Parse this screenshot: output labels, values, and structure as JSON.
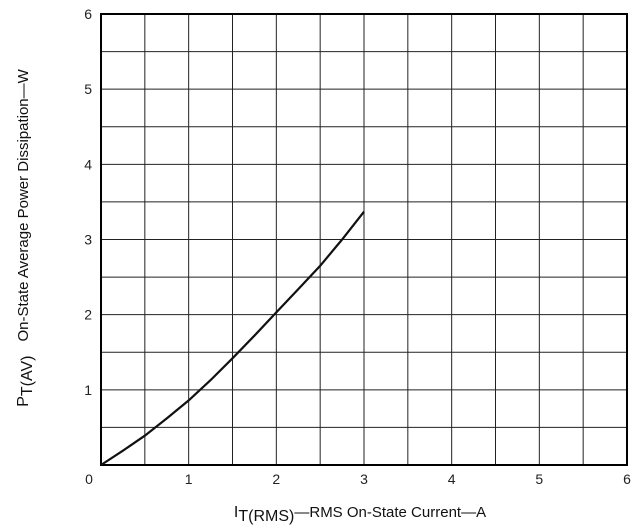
{
  "chart_data": {
    "type": "line",
    "title": "",
    "xlabel": {
      "main": "I",
      "sub": "T(RMS)",
      "rest": "—RMS On-State Current—A"
    },
    "ylabel": {
      "main": "P",
      "sub": "T(AV)",
      "rest": "On-State Average Power Dissipation—W"
    },
    "xlim": [
      0,
      6
    ],
    "ylim": [
      0,
      6
    ],
    "x_ticks": [
      "0",
      "1",
      "2",
      "3",
      "4",
      "5",
      "6"
    ],
    "y_ticks": [
      "1",
      "2",
      "3",
      "4",
      "5",
      "6"
    ],
    "grid": true,
    "minor_grid_step": 0.5,
    "series": [
      {
        "x": [
          0,
          0.25,
          0.5,
          0.75,
          1.0,
          1.25,
          1.5,
          1.75,
          2.0,
          2.25,
          2.5,
          2.75,
          3.0
        ],
        "y": [
          0,
          0.19,
          0.39,
          0.62,
          0.86,
          1.13,
          1.42,
          1.72,
          2.03,
          2.34,
          2.65,
          3.0,
          3.37
        ]
      }
    ],
    "colors": {
      "line": "#111111",
      "grid": "#222222",
      "frame": "#000000"
    }
  }
}
